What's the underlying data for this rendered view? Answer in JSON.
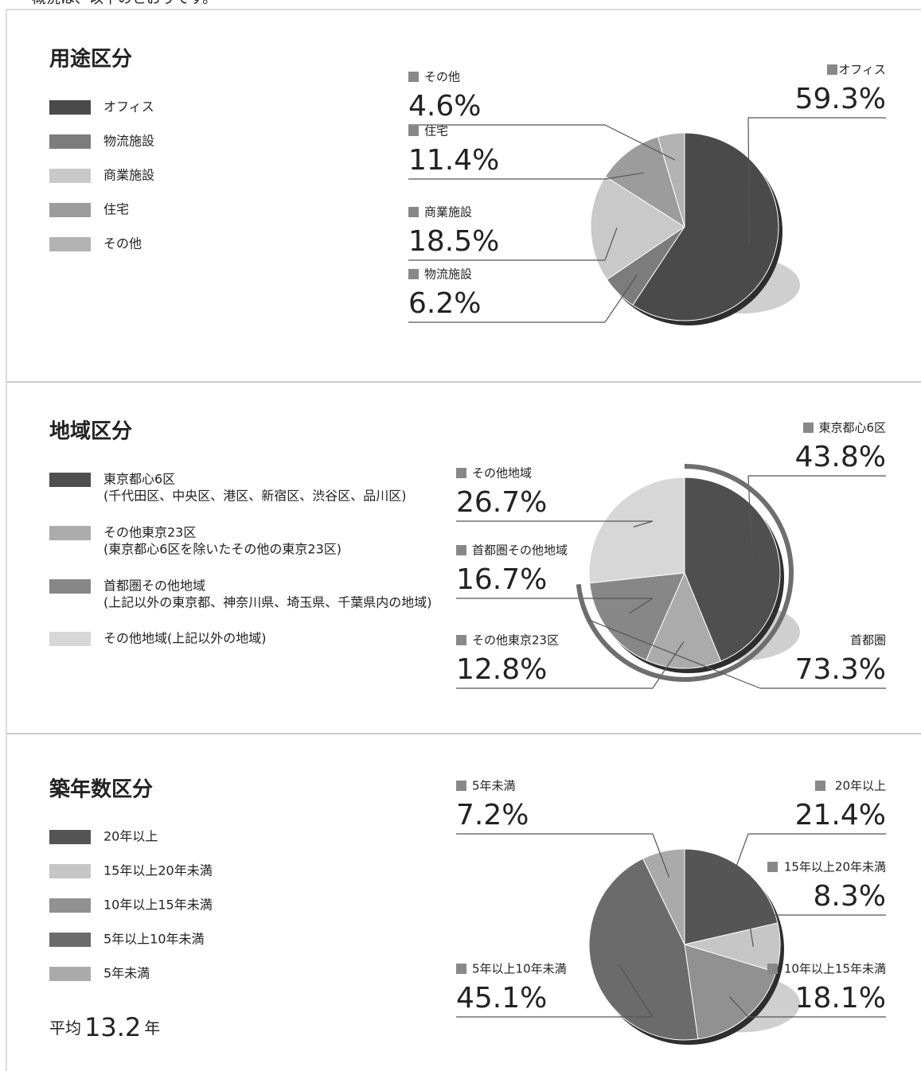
{
  "header": "概況は、以下のとおりです。",
  "chart_data": [
    {
      "type": "pie",
      "title": "用途区分",
      "categories": [
        "オフィス",
        "物流施設",
        "商業施設",
        "住宅",
        "その他"
      ],
      "values": [
        59.3,
        6.2,
        18.5,
        11.4,
        4.6
      ],
      "value_labels": [
        "59.3%",
        "6.2%",
        "18.5%",
        "11.4%",
        "4.6%"
      ],
      "colors": [
        "#4a4a4a",
        "#7c7c7c",
        "#c9c9c9",
        "#9c9c9c",
        "#b3b3b3"
      ]
    },
    {
      "type": "pie",
      "title": "地域区分",
      "categories": [
        "東京都心6区",
        "その他東京23区",
        "首都圏その他地域",
        "その他地域"
      ],
      "values": [
        43.8,
        12.8,
        16.7,
        26.7
      ],
      "value_labels": [
        "43.8%",
        "12.8%",
        "16.7%",
        "26.7%"
      ],
      "colors": [
        "#4f4f4f",
        "#ababab",
        "#878787",
        "#d7d7d7"
      ],
      "legend": [
        {
          "label": "東京都心6区",
          "note": "(千代田区、中央区、港区、新宿区、渋谷区、品川区)"
        },
        {
          "label": "その他東京23区",
          "note": "(東京都心6区を除いたその他の東京23区)"
        },
        {
          "label": "首都圏その他地域",
          "note": "(上記以外の東京都、神奈川県、埼玉県、千葉県内の地域)"
        },
        {
          "label": "その他地域(上記以外の地域)"
        }
      ],
      "annotation": {
        "label": "首都圏",
        "value": 73.3,
        "value_label": "73.3%"
      }
    },
    {
      "type": "pie",
      "title": "築年数区分",
      "categories": [
        "20年以上",
        "15年以上20年未満",
        "10年以上15年未満",
        "5年以上10年未満",
        "5年未満"
      ],
      "values": [
        21.4,
        8.3,
        18.1,
        45.1,
        7.2
      ],
      "value_labels": [
        "21.4%",
        "8.3%",
        "18.1%",
        "45.1%",
        "7.2%"
      ],
      "colors": [
        "#555555",
        "#c6c6c6",
        "#919191",
        "#6b6b6b",
        "#aaaaaa"
      ],
      "average": {
        "label": "平均",
        "value": 13.2,
        "unit": "年"
      }
    }
  ]
}
